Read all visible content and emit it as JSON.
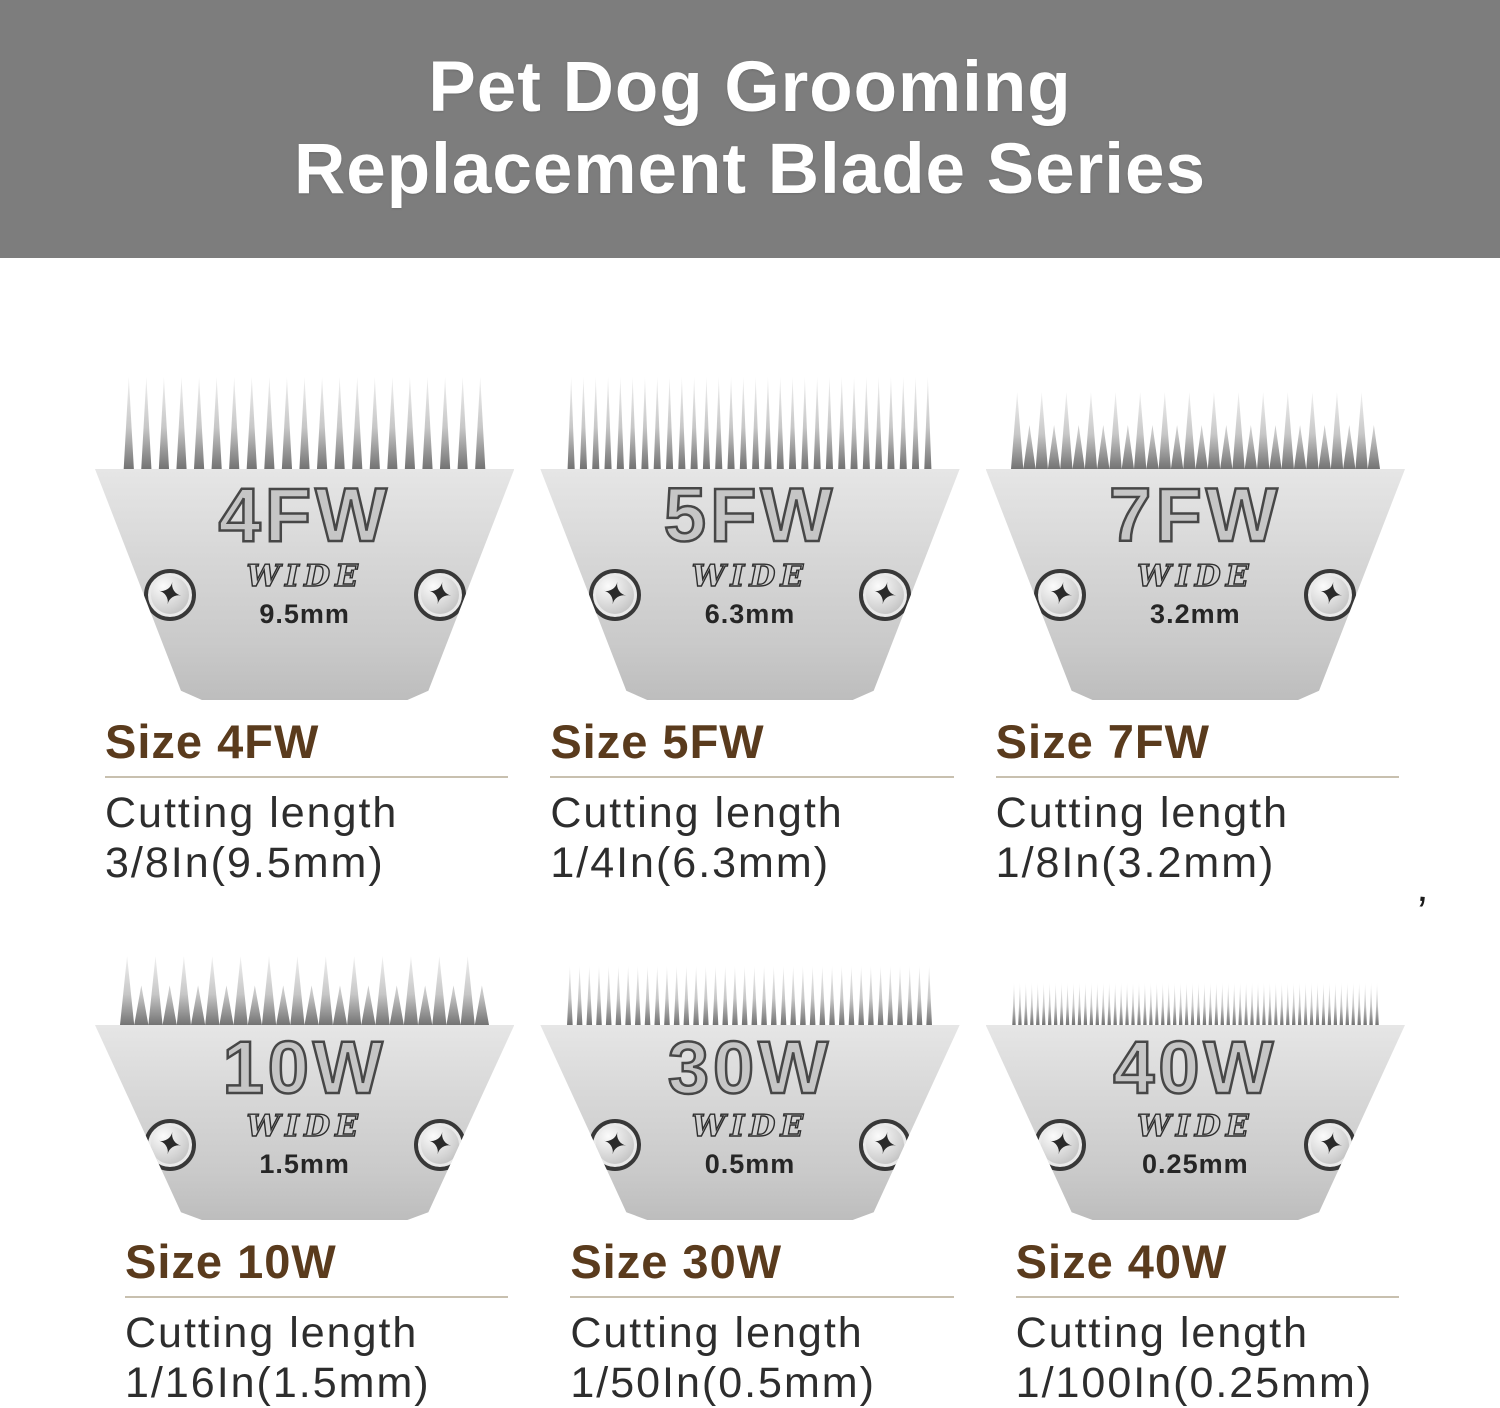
{
  "header": {
    "title_lines": [
      "Pet Dog Grooming",
      "Replacement Blade Series"
    ],
    "bg_color": "#7d7d7d",
    "text_color": "#ffffff"
  },
  "palette": {
    "heading_brown": "#5a3b1d",
    "underline_tan": "#c8c0af",
    "body_text": "#2d2d2d",
    "blade_silver": "#d6d6d6"
  },
  "icons": {
    "screw_glyph": "✦"
  },
  "blades": [
    {
      "code": "4FW",
      "wide_label": "WIDE",
      "cut_mm": "9.5mm",
      "size_heading": "Size 4FW",
      "cutting_length_label": "Cutting length",
      "cutting_length_value": "3/8In(9.5mm)"
    },
    {
      "code": "5FW",
      "wide_label": "WIDE",
      "cut_mm": "6.3mm",
      "size_heading": "Size 5FW",
      "cutting_length_label": "Cutting length",
      "cutting_length_value": "1/4In(6.3mm)"
    },
    {
      "code": "7FW",
      "wide_label": "WIDE",
      "cut_mm": "3.2mm",
      "size_heading": "Size 7FW",
      "cutting_length_label": "Cutting length",
      "cutting_length_value": "1/8In(3.2mm)"
    },
    {
      "code": "10W",
      "wide_label": "WIDE",
      "cut_mm": "1.5mm",
      "size_heading": "Size 10W",
      "cutting_length_label": "Cutting length",
      "cutting_length_value": "1/16In(1.5mm)"
    },
    {
      "code": "30W",
      "wide_label": "WIDE",
      "cut_mm": "0.5mm",
      "size_heading": "Size 30W",
      "cutting_length_label": "Cutting length",
      "cutting_length_value": "1/50In(0.5mm)"
    },
    {
      "code": "40W",
      "wide_label": "WIDE",
      "cut_mm": "0.25mm",
      "size_heading": "Size 40W",
      "cutting_length_label": "Cutting length",
      "cutting_length_value": "1/100In(0.25mm)"
    }
  ],
  "stray_mark": "’"
}
